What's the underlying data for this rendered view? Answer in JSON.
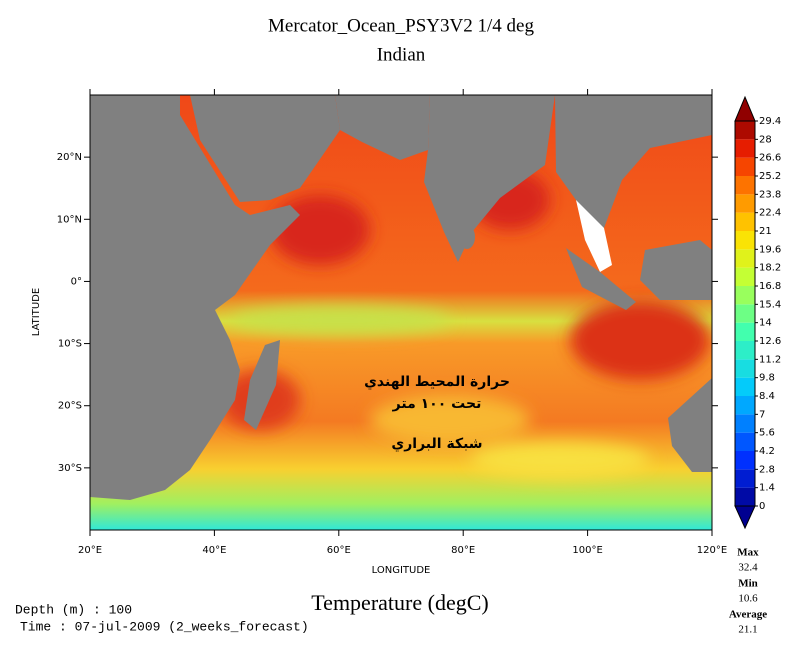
{
  "chart_data": {
    "type": "map",
    "title": "Mercator_Ocean_PSY3V2 1/4 deg",
    "subtitle": "Indian",
    "x_label": "LONGITUDE",
    "y_label": "LATITUDE",
    "xlim": [
      20,
      120
    ],
    "ylim": [
      -40,
      30
    ],
    "xticks": [
      {
        "value": 20,
        "label": "20°E"
      },
      {
        "value": 40,
        "label": "40°E"
      },
      {
        "value": 60,
        "label": "60°E"
      },
      {
        "value": 80,
        "label": "80°E"
      },
      {
        "value": 100,
        "label": "100°E"
      },
      {
        "value": 120,
        "label": "120°E"
      }
    ],
    "yticks": [
      {
        "value": -30,
        "label": "30°S"
      },
      {
        "value": -20,
        "label": "20°S"
      },
      {
        "value": -10,
        "label": "10°S"
      },
      {
        "value": 0,
        "label": "0°"
      },
      {
        "value": 10,
        "label": "10°N"
      },
      {
        "value": 20,
        "label": "20°N"
      }
    ],
    "colorbar": {
      "label": "Temperature (degC)",
      "levels": [
        0,
        1.4,
        2.8,
        4.2,
        5.6,
        7,
        8.4,
        9.8,
        11.2,
        12.6,
        14,
        15.4,
        16.8,
        18.2,
        19.6,
        21,
        22.4,
        23.8,
        25.2,
        26.6,
        28,
        29.4
      ]
    },
    "stats": [
      {
        "name": "Max",
        "value": 32.4
      },
      {
        "name": "Min",
        "value": 10.6
      },
      {
        "name": "Average",
        "value": 21.1
      }
    ],
    "depth": "Depth (m) : 100",
    "time": "Time : 07-jul-2009 (2_weeks_forecast)",
    "annotations": [
      "حرارة المحيط الهندي",
      "تحت ١٠٠ متر",
      "شبكة البراري"
    ]
  }
}
